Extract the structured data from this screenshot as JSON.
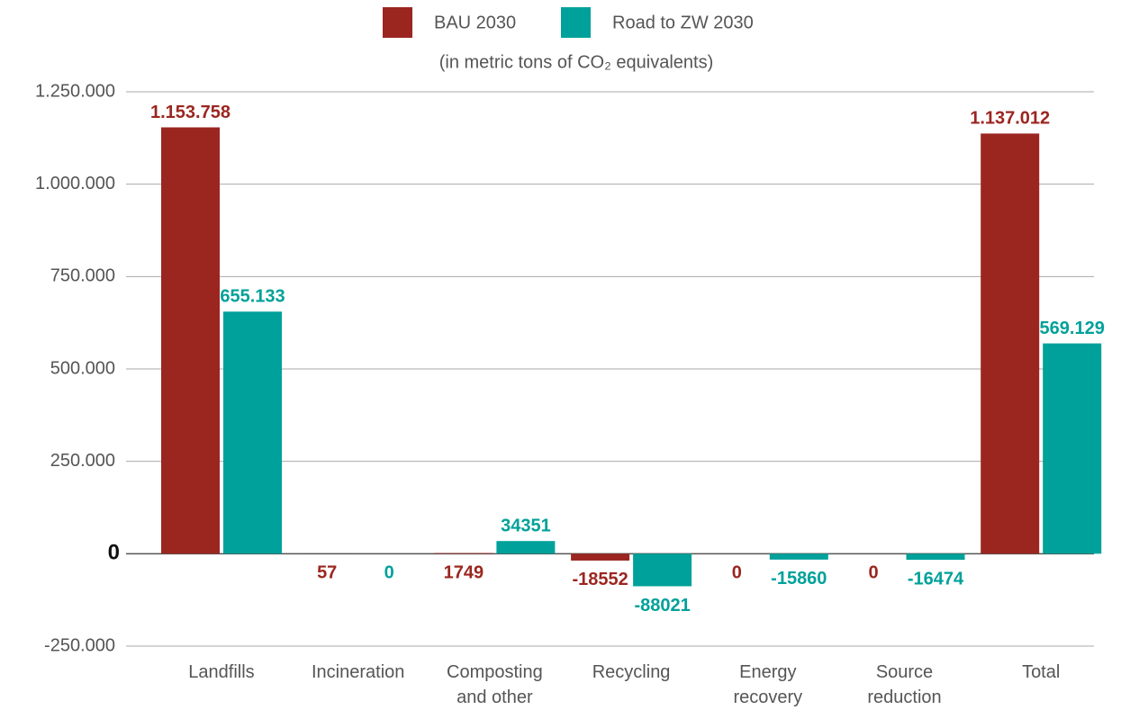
{
  "chart_data": {
    "type": "bar",
    "subtitle": "(in metric tons of CO₂ equivalents)",
    "categories": [
      "Landfills",
      "Incineration",
      "Composting and other",
      "Recycling",
      "Energy recovery",
      "Source reduction",
      "Total"
    ],
    "series": [
      {
        "name": "BAU 2030",
        "color": "#9b2620",
        "values": [
          1153758,
          57,
          1749,
          -18552,
          0,
          0,
          1137012
        ],
        "value_labels": [
          "1.153.758",
          "57",
          "1749",
          "-18552",
          "0",
          "0",
          "1.137.012"
        ]
      },
      {
        "name": "Road to ZW 2030",
        "color": "#00a19a",
        "values": [
          655133,
          0,
          34351,
          -88021,
          -15860,
          -16474,
          569129
        ],
        "value_labels": [
          "655.133",
          "0",
          "34351",
          "-88021",
          "-15860",
          "-16474",
          "569.129"
        ]
      }
    ],
    "ylim": [
      -250000,
      1250000
    ],
    "yticks": [
      {
        "value": -250000,
        "label": "-250.000"
      },
      0,
      {
        "value": 250000,
        "label": "250.000"
      },
      {
        "value": 500000,
        "label": "500.000"
      },
      {
        "value": 750000,
        "label": "750.000"
      },
      {
        "value": 1000000,
        "label": "1.000.000"
      },
      {
        "value": 1250000,
        "label": "1.250.000"
      }
    ],
    "grid": true,
    "legend": "top"
  }
}
